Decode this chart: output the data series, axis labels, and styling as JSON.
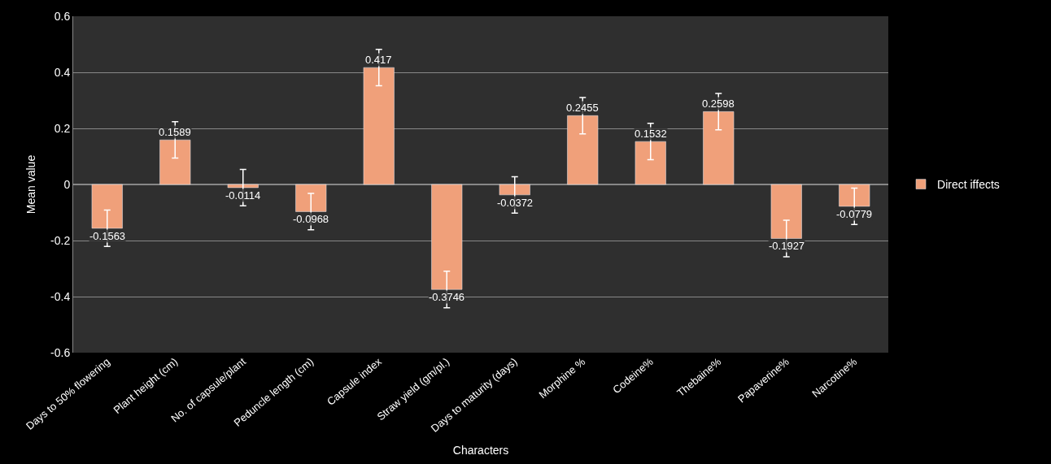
{
  "chart_data": {
    "type": "bar",
    "xlabel": "Characters",
    "ylabel": "Mean value",
    "categories": [
      "Days to 50% flowering",
      "Plant height (cm)",
      "No. of capsule/plant",
      "Peduncle length (cm)",
      "Capsule index",
      "Straw yield (gm/pl.)",
      "Days to maturity (days)",
      "Morphine %",
      "Codeine%",
      "Thebaine%",
      "Papaverine%",
      "Narcotine%"
    ],
    "series": [
      {
        "name": "Direct iffects",
        "color": "#f0a07a",
        "values": [
          -0.1563,
          0.1589,
          -0.0114,
          -0.0968,
          0.417,
          -0.3746,
          -0.0372,
          0.2455,
          0.1532,
          0.2598,
          -0.1927,
          -0.0779
        ],
        "errors": [
          0.065,
          0.065,
          0.065,
          0.065,
          0.065,
          0.065,
          0.065,
          0.065,
          0.065,
          0.065,
          0.065,
          0.065
        ]
      }
    ],
    "data_labels": true,
    "ylim": [
      -0.6,
      0.6
    ],
    "yticks": [
      -0.6,
      -0.4,
      -0.2,
      0,
      0.2,
      0.4,
      0.6
    ],
    "grid": "y",
    "legend": "right"
  }
}
